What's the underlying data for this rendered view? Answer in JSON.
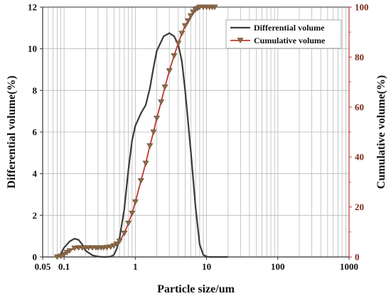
{
  "chart_data": {
    "type": "line",
    "xlabel": "Particle size/um",
    "ylabel_left": "Differential volume(%)",
    "ylabel_right": "Cumulative volume(%)",
    "x_scale": "log",
    "xlim": [
      0.05,
      1000
    ],
    "ylim_left": [
      0,
      12
    ],
    "ylim_right": [
      0,
      100
    ],
    "x_tick_labels": [
      {
        "value": 0.05,
        "label": "0.05"
      },
      {
        "value": 0.1,
        "label": "0.1"
      },
      {
        "value": 1,
        "label": "1"
      },
      {
        "value": 10,
        "label": "10"
      },
      {
        "value": 100,
        "label": "100"
      },
      {
        "value": 1000,
        "label": "1000"
      }
    ],
    "y_left_ticks": [
      "0",
      "2",
      "4",
      "6",
      "8",
      "10",
      "12"
    ],
    "y_right_ticks": [
      "0",
      "20",
      "40",
      "60",
      "80",
      "100"
    ],
    "grid": true,
    "legend_position": "top-right",
    "series": [
      {
        "name": "Differential volume",
        "axis": "left",
        "color": "#3a3a3a",
        "marker": "none",
        "x": [
          0.08,
          0.09,
          0.1,
          0.12,
          0.14,
          0.16,
          0.18,
          0.2,
          0.25,
          0.3,
          0.35,
          0.4,
          0.45,
          0.5,
          0.55,
          0.6,
          0.7,
          0.8,
          0.9,
          1.0,
          1.2,
          1.4,
          1.6,
          1.8,
          2.0,
          2.5,
          3.0,
          3.5,
          4.0,
          4.5,
          5.0,
          6.0,
          7.0,
          8.0,
          9.0,
          10.0,
          11.0,
          12.0,
          15.0,
          20.0
        ],
        "y": [
          0.02,
          0.15,
          0.45,
          0.75,
          0.88,
          0.82,
          0.6,
          0.3,
          0.08,
          0.02,
          0.0,
          0.0,
          0.02,
          0.1,
          0.4,
          0.9,
          2.3,
          4.2,
          5.6,
          6.3,
          6.9,
          7.3,
          8.1,
          9.1,
          9.9,
          10.6,
          10.75,
          10.6,
          10.2,
          9.4,
          8.0,
          5.1,
          2.4,
          0.6,
          0.1,
          0.02,
          0.0,
          0.0,
          0.0,
          0.0
        ]
      },
      {
        "name": "Cumulative volume",
        "axis": "right",
        "color": "#c0392b",
        "marker_color": "#8a6a48",
        "marker": "triangle-down",
        "x": [
          0.08,
          0.09,
          0.1,
          0.11,
          0.12,
          0.14,
          0.16,
          0.18,
          0.2,
          0.22,
          0.25,
          0.28,
          0.3,
          0.33,
          0.36,
          0.4,
          0.45,
          0.5,
          0.55,
          0.6,
          0.7,
          0.8,
          0.9,
          1.0,
          1.2,
          1.4,
          1.6,
          1.8,
          2.0,
          2.3,
          2.6,
          3.0,
          3.5,
          4.0,
          4.5,
          5.0,
          5.5,
          6.0,
          6.5,
          7.0,
          7.5,
          8.0,
          9.0,
          10.0,
          11.0,
          12.0,
          13.0
        ],
        "y": [
          0.0,
          0.3,
          1.0,
          1.8,
          2.5,
          3.5,
          3.7,
          3.7,
          3.7,
          3.7,
          3.7,
          3.7,
          3.7,
          3.7,
          3.7,
          3.8,
          4.0,
          4.5,
          5.2,
          6.3,
          9.5,
          13.5,
          17.5,
          22.0,
          30.5,
          37.5,
          44.5,
          50.0,
          55.5,
          62.0,
          68.0,
          74.5,
          80.5,
          85.5,
          89.5,
          92.5,
          94.5,
          96.5,
          98.0,
          99.0,
          99.5,
          100.0,
          100.0,
          100.0,
          100.0,
          100.0,
          100.0
        ]
      }
    ]
  }
}
